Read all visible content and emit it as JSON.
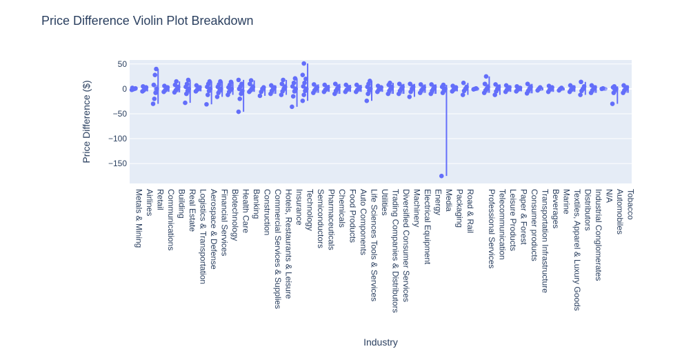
{
  "chart_data": {
    "type": "violin",
    "title": "Price Difference Violin Plot Breakdown",
    "xlabel": "Industry",
    "ylabel": "Price Difference ($)",
    "ylim": [
      -190,
      58
    ],
    "yticks": [
      50,
      0,
      -50,
      -100,
      -150
    ],
    "colors": {
      "series": "#636efa",
      "plot_bg": "#e5ecf6",
      "grid": "#ffffff",
      "text": "#2a3f5f"
    },
    "categories": [
      {
        "name": "Metals & Mining",
        "points": [
          -2,
          -1,
          0,
          1,
          2
        ]
      },
      {
        "name": "Airlines",
        "points": [
          -5,
          -3,
          0,
          3,
          5
        ]
      },
      {
        "name": "Retail",
        "points": [
          -30,
          -20,
          -8,
          0,
          8,
          28,
          40
        ]
      },
      {
        "name": "Communications",
        "points": [
          -6,
          -3,
          0,
          3,
          6
        ]
      },
      {
        "name": "Building",
        "points": [
          -7,
          -3,
          0,
          4,
          8,
          15
        ]
      },
      {
        "name": "Real Estate",
        "points": [
          -28,
          -10,
          -4,
          0,
          4,
          10,
          18
        ]
      },
      {
        "name": "Logistics & Transportation",
        "points": [
          -5,
          -2,
          0,
          3,
          7
        ]
      },
      {
        "name": "Aerospace & Defense",
        "points": [
          -31,
          -12,
          -4,
          0,
          4,
          10,
          15
        ]
      },
      {
        "name": "Financial Services",
        "points": [
          -16,
          -8,
          -3,
          0,
          4,
          9,
          15
        ]
      },
      {
        "name": "Biotechnology",
        "points": [
          -12,
          -6,
          -2,
          0,
          3,
          8,
          14
        ]
      },
      {
        "name": "Health Care",
        "points": [
          -46,
          -20,
          -10,
          -4,
          0,
          5,
          10,
          18
        ]
      },
      {
        "name": "Banking",
        "points": [
          -6,
          -3,
          0,
          4,
          10,
          17
        ]
      },
      {
        "name": "Construction",
        "points": [
          -14,
          -6,
          0,
          3
        ]
      },
      {
        "name": "Commercial Services & Supplies",
        "points": [
          -10,
          -4,
          0,
          3,
          7
        ]
      },
      {
        "name": "Hotels, Restaurants & Leisure",
        "points": [
          -12,
          -5,
          0,
          4,
          10,
          18
        ]
      },
      {
        "name": "Insurance",
        "points": [
          -36,
          -15,
          -5,
          0,
          5,
          12,
          21
        ]
      },
      {
        "name": "Technology",
        "points": [
          -24,
          -12,
          -4,
          0,
          5,
          12,
          20,
          28,
          51
        ]
      },
      {
        "name": "Semiconductors",
        "points": [
          -8,
          -3,
          0,
          3,
          9
        ]
      },
      {
        "name": "Pharmaceuticals",
        "points": [
          -6,
          -2,
          0,
          3,
          8
        ]
      },
      {
        "name": "Chemicals",
        "points": [
          -10,
          -4,
          0,
          4,
          10
        ]
      },
      {
        "name": "Food Products",
        "points": [
          -6,
          -2,
          0,
          3,
          8
        ]
      },
      {
        "name": "Auto Components",
        "points": [
          -6,
          -2,
          0,
          3,
          8
        ]
      },
      {
        "name": "Life Sciences Tools & Services",
        "points": [
          -24,
          -10,
          -3,
          0,
          4,
          10,
          16
        ]
      },
      {
        "name": "Utilities",
        "points": [
          -6,
          -2,
          0,
          3,
          6
        ]
      },
      {
        "name": "Trading Companies & Distributors",
        "points": [
          -10,
          -4,
          0,
          4,
          8,
          12
        ]
      },
      {
        "name": "Diversified Consumer Services",
        "points": [
          -10,
          -4,
          0,
          4,
          10
        ]
      },
      {
        "name": "Machinery",
        "points": [
          -16,
          -6,
          0,
          4,
          10
        ]
      },
      {
        "name": "Electrical Equipment",
        "points": [
          -8,
          -3,
          0,
          3,
          9
        ]
      },
      {
        "name": "Energy",
        "points": [
          -10,
          -4,
          0,
          4,
          9
        ]
      },
      {
        "name": "Media",
        "points": [
          -175,
          -8,
          -3,
          0,
          4,
          8
        ]
      },
      {
        "name": "Packaging",
        "points": [
          -5,
          -2,
          0,
          3,
          6
        ]
      },
      {
        "name": "Road & Rail",
        "points": [
          -12,
          -4,
          0,
          4,
          12
        ]
      },
      {
        "name": "",
        "points": [
          -1,
          0,
          1
        ]
      },
      {
        "name": "Professional Services",
        "points": [
          -8,
          -3,
          0,
          4,
          10,
          25
        ]
      },
      {
        "name": "Telecommunication",
        "points": [
          -12,
          -5,
          0,
          4,
          9
        ]
      },
      {
        "name": "Leisure Products",
        "points": [
          -6,
          -2,
          0,
          3,
          7
        ]
      },
      {
        "name": "Paper & Forest",
        "points": [
          -5,
          -2,
          0,
          2,
          5
        ]
      },
      {
        "name": "Consumer products",
        "points": [
          -9,
          -4,
          0,
          4,
          10
        ]
      },
      {
        "name": "Transportation Infrastructure",
        "points": [
          -3,
          0,
          3
        ]
      },
      {
        "name": "Beverages",
        "points": [
          -6,
          -2,
          0,
          3,
          6
        ]
      },
      {
        "name": "Marine",
        "points": [
          -3,
          0,
          2
        ]
      },
      {
        "name": "Textiles, Apparel & Luxury Goods",
        "points": [
          -6,
          -2,
          0,
          3,
          7
        ]
      },
      {
        "name": "Distributors",
        "points": [
          -12,
          -4,
          0,
          5,
          14
        ]
      },
      {
        "name": "Industrial Conglomerates",
        "points": [
          -8,
          -3,
          0,
          3,
          7
        ]
      },
      {
        "name": "N/A",
        "points": [
          0,
          1
        ]
      },
      {
        "name": "Automobiles",
        "points": [
          -30,
          -8,
          -2,
          0,
          3,
          5
        ]
      },
      {
        "name": "Tobacco",
        "points": [
          -8,
          -3,
          0,
          3,
          7
        ]
      }
    ]
  }
}
